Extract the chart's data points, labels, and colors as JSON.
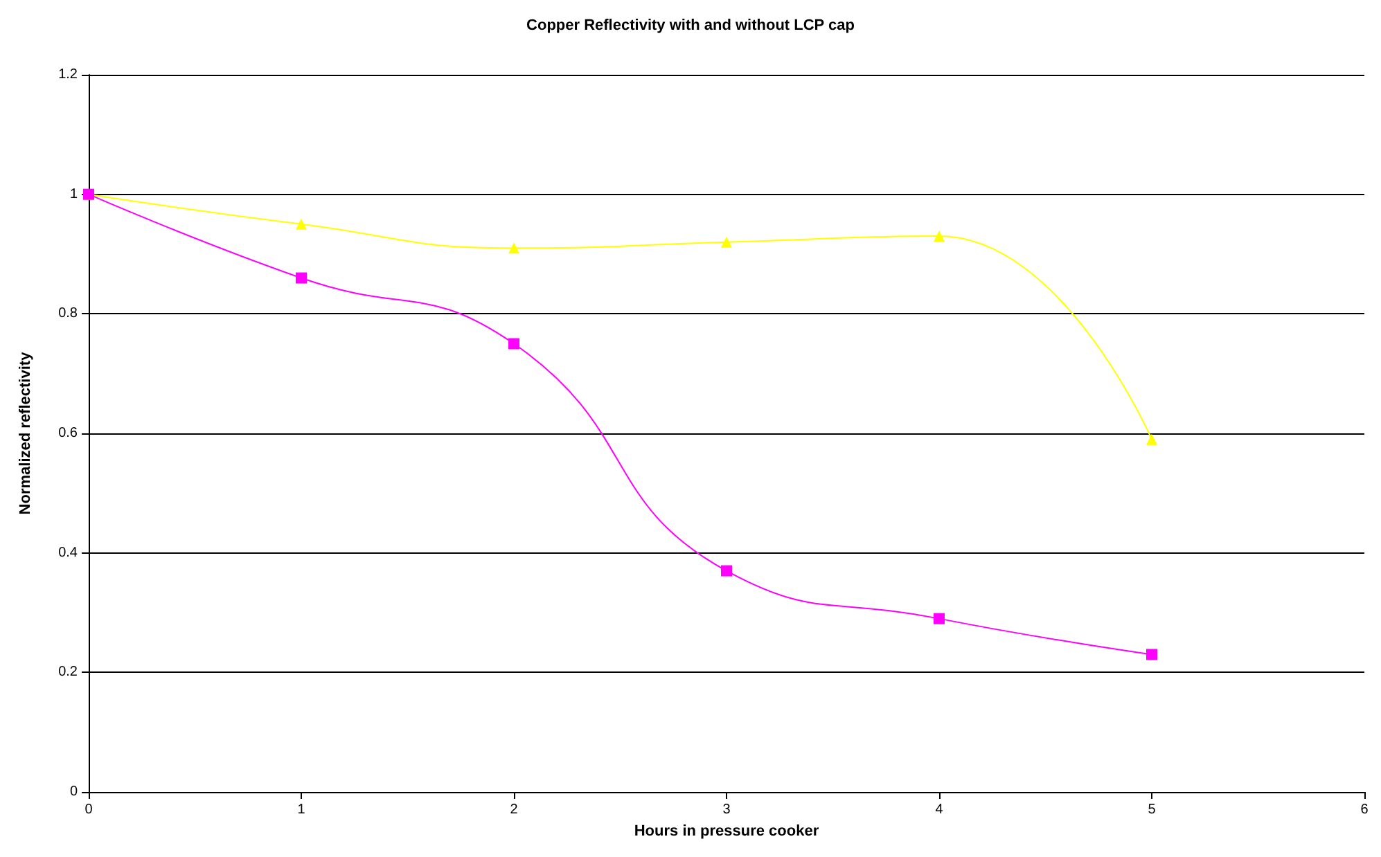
{
  "chart_data": {
    "type": "line",
    "title": "Copper Reflectivity with and without LCP cap",
    "xlabel": "Hours in pressure cooker",
    "ylabel": "Normalized reflectivity",
    "x": [
      0,
      1,
      2,
      3,
      4,
      5
    ],
    "xlim": [
      0,
      6
    ],
    "xticks": [
      0,
      1,
      2,
      3,
      4,
      5,
      6
    ],
    "ylim": [
      0,
      1.2
    ],
    "yticks": [
      0,
      0.2,
      0.4,
      0.6,
      0.8,
      1,
      1.2
    ],
    "grid": "y",
    "line_style": "solid",
    "series": [
      {
        "color": "#ffff00",
        "marker": "triangle",
        "values": [
          1,
          0.95,
          0.91,
          0.92,
          0.93,
          0.59
        ]
      },
      {
        "color": "#ff00ff",
        "marker": "square",
        "values": [
          1,
          0.86,
          0.75,
          0.37,
          0.29,
          0.23
        ]
      }
    ]
  }
}
